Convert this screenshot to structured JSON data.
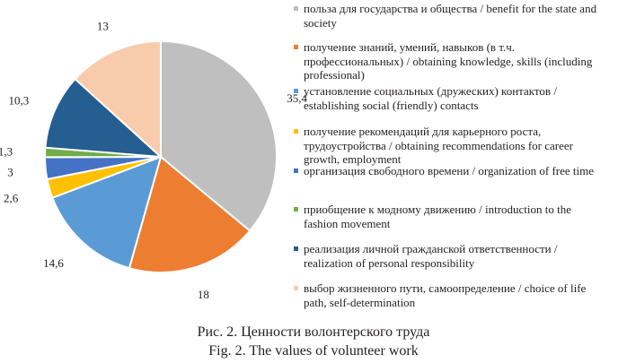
{
  "chart_data": {
    "type": "pie",
    "start_angle_deg": 0,
    "direction": "clockwise",
    "legend_position": "right",
    "slices": [
      {
        "label": "польза для государства и общества / benefit for the state and society",
        "value": 35.4,
        "value_label": "35,4",
        "color": "#bfbfbf"
      },
      {
        "label": "получение знаний, умений, навыков (в т.ч. профессиональных) / obtaining knowledge, skills (including professional)",
        "value": 18,
        "value_label": "18",
        "color": "#ed7d31"
      },
      {
        "label": "установление социальных (дружеских) контактов / establishing social (friendly) contacts",
        "value": 14.6,
        "value_label": "14,6",
        "color": "#5b9bd5"
      },
      {
        "label": "получение рекомендаций для карьерного роста, трудоустройства / obtaining recommendations for career growth, employment",
        "value": 2.6,
        "value_label": "2,6",
        "color": "#ffc000"
      },
      {
        "label": "организация свободного времени / organization of free time",
        "value": 3,
        "value_label": "3",
        "color": "#4472c4"
      },
      {
        "label": "приобщение к модному движению / introduction to the fashion movement",
        "value": 1.3,
        "value_label": "1,3",
        "color": "#70ad47"
      },
      {
        "label": "реализация личной гражданской ответственности / realization of personal responsibility",
        "value": 10.3,
        "value_label": "10,3",
        "color": "#255e91"
      },
      {
        "label": "выбор жизненного пути, самоопределение / choice of life path, self-determination",
        "value": 13,
        "value_label": "13",
        "color": "#f8cbad"
      }
    ]
  },
  "caption": {
    "ru": "Рис. 2. Ценности волонтерского труда",
    "en": "Fig. 2. The values of volunteer work"
  }
}
